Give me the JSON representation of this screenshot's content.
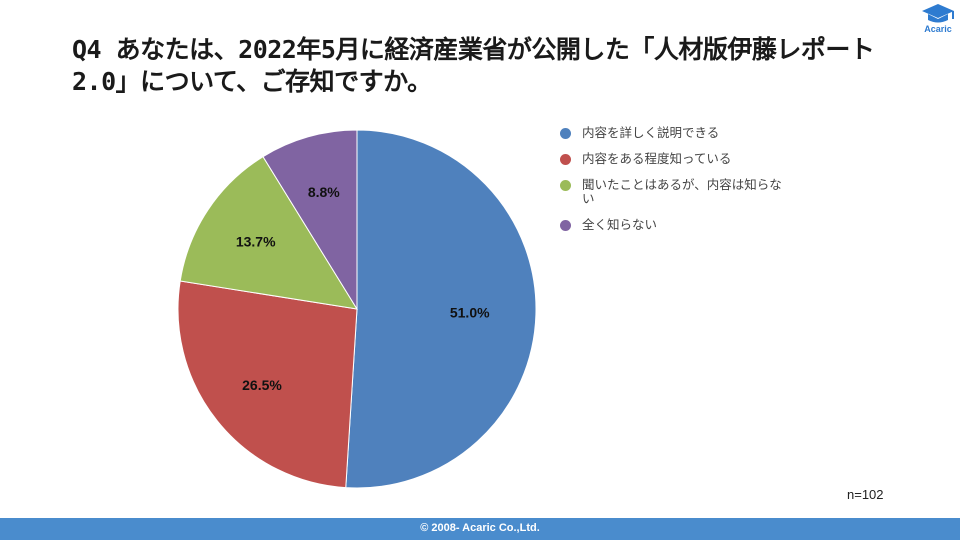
{
  "slide": {
    "title": "Q4 あなたは、2022年5月に経済産業省が公開した「人材版伊藤レポート\n2.0」について、ご存知ですか。",
    "logo_text": "Acaric",
    "sample_note": "n=102",
    "footer": "© 2008- Acaric Co.,Ltd."
  },
  "chart_data": {
    "type": "pie",
    "title": "",
    "legend_position": "right",
    "slices": [
      {
        "label": "内容を詳しく説明できる",
        "value": 51.0,
        "data_label": "51.0%",
        "color": "#4f81bd"
      },
      {
        "label": "内容をある程度知っている",
        "value": 26.5,
        "data_label": "26.5%",
        "color": "#c0504d"
      },
      {
        "label": "聞いたことはあるが、内容は知らない",
        "value": 13.7,
        "data_label": "13.7%",
        "color": "#9bbb59"
      },
      {
        "label": "全く知らない",
        "value": 8.8,
        "data_label": "8.8%",
        "color": "#8064a2"
      }
    ]
  }
}
